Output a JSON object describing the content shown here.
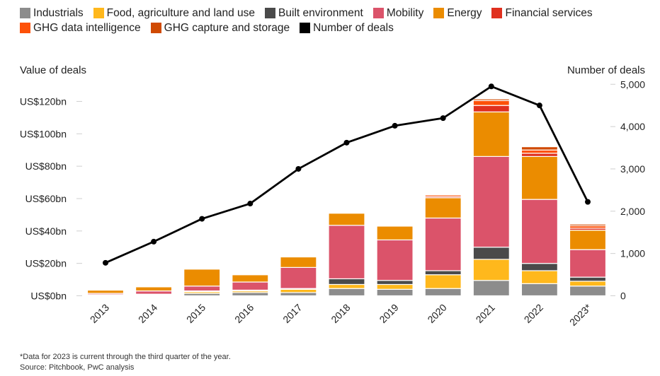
{
  "chart_data": {
    "type": "bar",
    "subtype": "stacked-bar-with-line",
    "categories": [
      "2013",
      "2014",
      "2015",
      "2016",
      "2017",
      "2018",
      "2019",
      "2020",
      "2021",
      "2022",
      "2023*"
    ],
    "left_axis": {
      "label": "Value of deals",
      "ticks": [
        0,
        20,
        40,
        60,
        80,
        100,
        120
      ],
      "tick_labels": [
        "US$0bn",
        "US$20bn",
        "US$40bn",
        "US$60bn",
        "US$80bn",
        "US$100bn",
        "US$120bn"
      ],
      "ylim": [
        0,
        130
      ]
    },
    "right_axis": {
      "label": "Number of deals",
      "ticks": [
        0,
        1000,
        2000,
        3000,
        4000,
        5000
      ],
      "tick_labels": [
        "0",
        "1,000",
        "2,000",
        "3,000",
        "4,000",
        "5,000"
      ],
      "ylim": [
        0,
        5200
      ]
    },
    "series": [
      {
        "name": "Industrials",
        "color": "#8c8c8c",
        "values": [
          0.3,
          0.4,
          1.5,
          2.0,
          2.0,
          4.5,
          4.0,
          4.5,
          9.5,
          7.5,
          6.0
        ]
      },
      {
        "name": "Food, agriculture and land use",
        "color": "#ffb81c",
        "values": [
          0.3,
          0.4,
          1.0,
          1.0,
          2.0,
          2.5,
          3.0,
          8.5,
          13.0,
          8.0,
          3.0
        ]
      },
      {
        "name": "Built environment",
        "color": "#4a4a4a",
        "values": [
          0.1,
          0.2,
          0.5,
          0.5,
          0.5,
          3.5,
          2.5,
          2.5,
          7.5,
          4.5,
          2.5
        ]
      },
      {
        "name": "Mobility",
        "color": "#db536a",
        "values": [
          0.8,
          2.0,
          3.0,
          5.0,
          13.0,
          33.0,
          25.0,
          32.5,
          56.0,
          39.5,
          17.0
        ]
      },
      {
        "name": "Energy",
        "color": "#eb8c00",
        "values": [
          2.0,
          2.5,
          10.5,
          4.5,
          6.5,
          7.5,
          8.5,
          12.5,
          27.5,
          26.5,
          12.0
        ]
      },
      {
        "name": "Financial services",
        "color": "#e0301e",
        "values": [
          0.2,
          0.4,
          0.3,
          0.3,
          0.5,
          0.3,
          0.5,
          0.8,
          4.0,
          2.0,
          1.2
        ]
      },
      {
        "name": "GHG data intelligence",
        "color": "#fd5108",
        "values": [
          0.2,
          0.3,
          0.3,
          0.3,
          0.5,
          0.3,
          0.5,
          1.0,
          3.0,
          2.0,
          1.5
        ]
      },
      {
        "name": "GHG capture and storage",
        "color": "#d04a02",
        "values": [
          0.0,
          0.1,
          0.1,
          0.1,
          0.2,
          0.2,
          0.3,
          0.5,
          1.0,
          2.0,
          1.0
        ]
      },
      {
        "name": "Number of deals",
        "color": "#000000",
        "type": "line",
        "axis": "right",
        "values": [
          780,
          1280,
          1820,
          2180,
          3000,
          3620,
          4020,
          4200,
          4950,
          4500,
          2220
        ]
      }
    ],
    "legend_placement": "top",
    "grid": false
  },
  "footnotes": {
    "note": "*Data for 2023 is current through the third quarter of the year.",
    "source": "Source: Pitchbook, PwC analysis"
  }
}
